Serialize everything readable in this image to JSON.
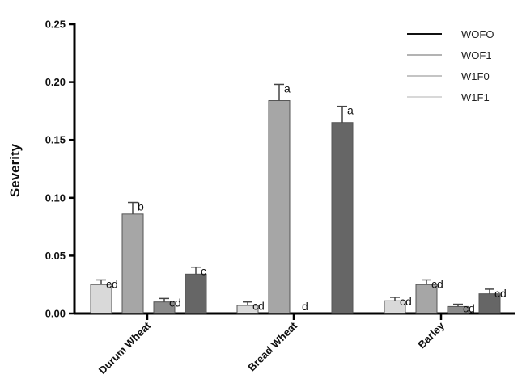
{
  "chart_data": {
    "type": "bar",
    "title": "",
    "xlabel": "",
    "ylabel": "Severity",
    "ylim": [
      0,
      0.25
    ],
    "yticks": [
      "0.00",
      "0.05",
      "0.10",
      "0.15",
      "0.20",
      "0.25"
    ],
    "categories": [
      "Durum Wheat",
      "Bread Wheat",
      "Barley"
    ],
    "legend": {
      "position": "top-right",
      "entries": [
        {
          "label": "WOFO",
          "color": "#111111"
        },
        {
          "label": "WOF1",
          "color": "#9a9a9a"
        },
        {
          "label": "W1F0",
          "color": "#b0b0b0"
        },
        {
          "label": "W1F1",
          "color": "#cccccc"
        }
      ]
    },
    "series": [
      {
        "name": "WOFO",
        "fill": "#d9d9d9",
        "values": [
          0.025,
          0.007,
          0.011
        ],
        "error_upper": [
          0.029,
          0.01,
          0.014
        ],
        "letters": [
          "cd",
          "cd",
          "cd"
        ]
      },
      {
        "name": "WOF1",
        "fill": "#a6a6a6",
        "values": [
          0.086,
          0.184,
          0.025
        ],
        "error_upper": [
          0.096,
          0.198,
          0.029
        ],
        "letters": [
          "b",
          "a",
          "cd"
        ]
      },
      {
        "name": "W1F0",
        "fill": "#8a8a8a",
        "values": [
          0.01,
          0.0,
          0.006
        ],
        "error_upper": [
          0.013,
          0.0,
          0.008
        ],
        "letters": [
          "cd",
          "d",
          "cd"
        ]
      },
      {
        "name": "W1F1",
        "fill": "#666666",
        "values": [
          0.034,
          0.165,
          0.017
        ],
        "error_upper": [
          0.04,
          0.179,
          0.021
        ],
        "letters": [
          "c",
          "a",
          "cd"
        ]
      }
    ],
    "grid": false
  }
}
